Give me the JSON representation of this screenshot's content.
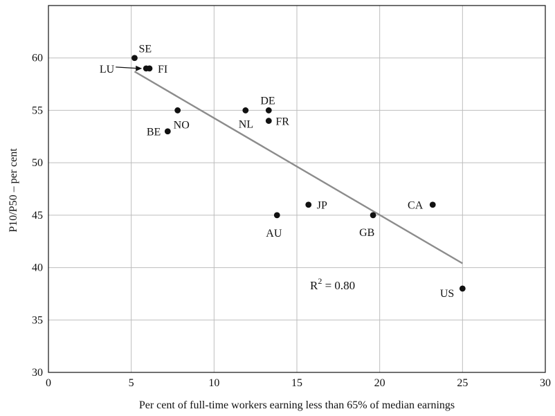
{
  "chart_data": {
    "type": "scatter",
    "title": "",
    "xlabel": "Per cent of full-time workers earning less than 65% of median earnings",
    "ylabel": "P10/P50 – per cent",
    "xlim": [
      0,
      30
    ],
    "ylim": [
      30,
      65
    ],
    "xticks": [
      0,
      5,
      10,
      15,
      20,
      25,
      30
    ],
    "yticks": [
      30,
      35,
      40,
      45,
      50,
      55,
      60
    ],
    "grid": true,
    "points": [
      {
        "label": "SE",
        "x": 5.2,
        "y": 60
      },
      {
        "label": "LU",
        "x": 5.9,
        "y": 59
      },
      {
        "label": "FI",
        "x": 6.1,
        "y": 59
      },
      {
        "label": "NO",
        "x": 7.8,
        "y": 55
      },
      {
        "label": "BE",
        "x": 7.2,
        "y": 53
      },
      {
        "label": "NL",
        "x": 11.9,
        "y": 55
      },
      {
        "label": "DE",
        "x": 13.3,
        "y": 55
      },
      {
        "label": "FR",
        "x": 13.3,
        "y": 54
      },
      {
        "label": "JP",
        "x": 15.7,
        "y": 46
      },
      {
        "label": "AU",
        "x": 13.8,
        "y": 45
      },
      {
        "label": "GB",
        "x": 19.6,
        "y": 45
      },
      {
        "label": "CA",
        "x": 23.2,
        "y": 46
      },
      {
        "label": "US",
        "x": 25.0,
        "y": 38
      }
    ],
    "trendline": {
      "x": [
        5.2,
        25.0
      ],
      "y": [
        58.7,
        40.4
      ]
    },
    "annotation": {
      "text_main": "R",
      "text_sup": "2",
      "text_rest": " = 0.80"
    }
  }
}
